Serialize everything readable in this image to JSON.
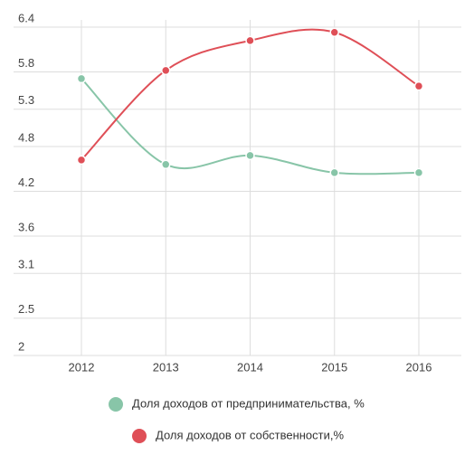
{
  "chart_data": {
    "type": "line",
    "categories": [
      "2012",
      "2013",
      "2014",
      "2015",
      "2016"
    ],
    "series": [
      {
        "name": "Доля доходов от предпринимательства, %",
        "color": "#88c5a8",
        "values": [
          5.71,
          4.56,
          4.68,
          4.45,
          4.45
        ]
      },
      {
        "name": "Доля доходов от собственности,%",
        "color": "#df4f57",
        "values": [
          4.62,
          5.82,
          6.22,
          6.33,
          5.61
        ]
      }
    ],
    "ylim": [
      2,
      6.4
    ],
    "yticks": [
      2,
      2.5,
      3.1,
      3.6,
      4.2,
      4.8,
      5.3,
      5.8,
      6.4
    ],
    "grid": true
  }
}
